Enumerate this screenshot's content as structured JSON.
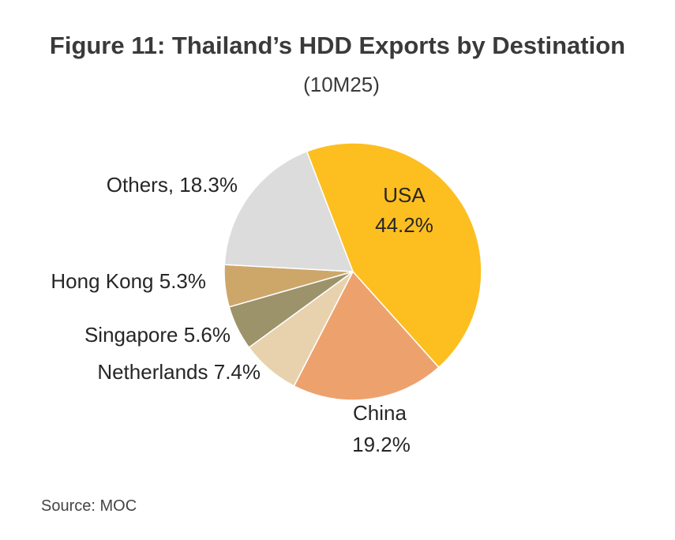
{
  "chart_data": {
    "type": "pie",
    "title": "Figure 11: Thailand’s HDD Exports by Destination",
    "subtitle": "(10M25)",
    "slices": [
      {
        "label": "USA",
        "value": 44.2,
        "value_text": "44.2%",
        "color": "#FDBE20"
      },
      {
        "label": "China",
        "value": 19.2,
        "value_text": "19.2%",
        "color": "#EDA26D"
      },
      {
        "label": "Netherlands",
        "value": 7.4,
        "value_text": "7.4%",
        "color": "#E8D2AE"
      },
      {
        "label": "Singapore",
        "value": 5.6,
        "value_text": "5.6%",
        "color": "#9C936A"
      },
      {
        "label": "Hong Kong",
        "value": 5.3,
        "value_text": "5.3%",
        "color": "#CDA76A"
      },
      {
        "label": "Others",
        "value": 18.3,
        "value_text": "18.3%",
        "color": "#DCDCDC"
      }
    ],
    "labels_text": {
      "usa_name": "USA",
      "usa_value": "44.2%",
      "china_name": "China",
      "china_value": "19.2%",
      "netherlands": "Netherlands 7.4%",
      "singapore": "Singapore 5.6%",
      "hong_kong": "Hong Kong 5.3%",
      "others": "Others, 18.3%"
    }
  },
  "source": "Source: MOC"
}
